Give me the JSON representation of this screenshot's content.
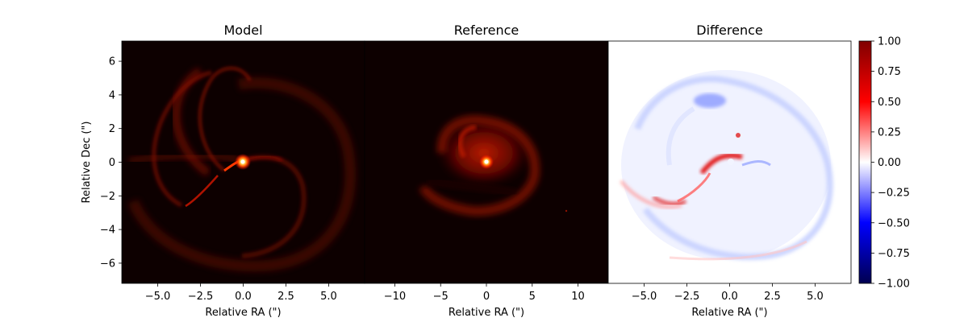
{
  "chart_data": [
    {
      "type": "heatmap",
      "title": "Model",
      "xlabel": "Relative RA (\")",
      "ylabel": "Relative Dec (\")",
      "xlim": [
        -7.1,
        7.1
      ],
      "ylim": [
        -7.2,
        7.2
      ],
      "xticks": [
        -5.0,
        -2.5,
        0.0,
        2.5,
        5.0
      ],
      "xtick_labels": [
        "−5.0",
        "−2.5",
        "0.0",
        "2.5",
        "5.0"
      ],
      "yticks": [
        6,
        4,
        2,
        0,
        -2,
        -4,
        -6
      ],
      "ytick_labels": [
        "6",
        "4",
        "2",
        "0",
        "−2",
        "−4",
        "−6"
      ],
      "colormap": "hot",
      "background": "#0d0000",
      "peak": {
        "x": 0.0,
        "y": 0.0
      }
    },
    {
      "type": "heatmap",
      "title": "Reference",
      "xlabel": "Relative RA (\")",
      "ylabel": "",
      "xlim": [
        -13.3,
        13.3
      ],
      "ylim": [
        -13.5,
        13.5
      ],
      "xticks": [
        -10,
        -5,
        0,
        5,
        10
      ],
      "xtick_labels": [
        "−10",
        "−5",
        "0",
        "5",
        "10"
      ],
      "colormap": "hot",
      "background": "#0d0000",
      "peak": {
        "x": 0.0,
        "y": 0.0
      }
    },
    {
      "type": "heatmap",
      "title": "Difference",
      "xlabel": "Relative RA (\")",
      "ylabel": "",
      "xlim": [
        -7.1,
        7.1
      ],
      "ylim": [
        -7.2,
        7.2
      ],
      "xticks": [
        -5.0,
        -2.5,
        0.0,
        2.5,
        5.0
      ],
      "xtick_labels": [
        "−5.0",
        "−2.5",
        "0.0",
        "2.5",
        "5.0"
      ],
      "colormap": "seismic",
      "colorbar": {
        "range": [
          -1.0,
          1.0
        ],
        "ticks": [
          1.0,
          0.75,
          0.5,
          0.25,
          0.0,
          -0.25,
          -0.5,
          -0.75,
          -1.0
        ],
        "tick_labels": [
          "1.00",
          "0.75",
          "0.50",
          "0.25",
          "0.00",
          "−0.25",
          "−0.50",
          "−0.75",
          "−1.00"
        ],
        "colors": [
          "#000050",
          "#0000ff",
          "#ffffff",
          "#ff0000",
          "#800000"
        ]
      }
    }
  ]
}
